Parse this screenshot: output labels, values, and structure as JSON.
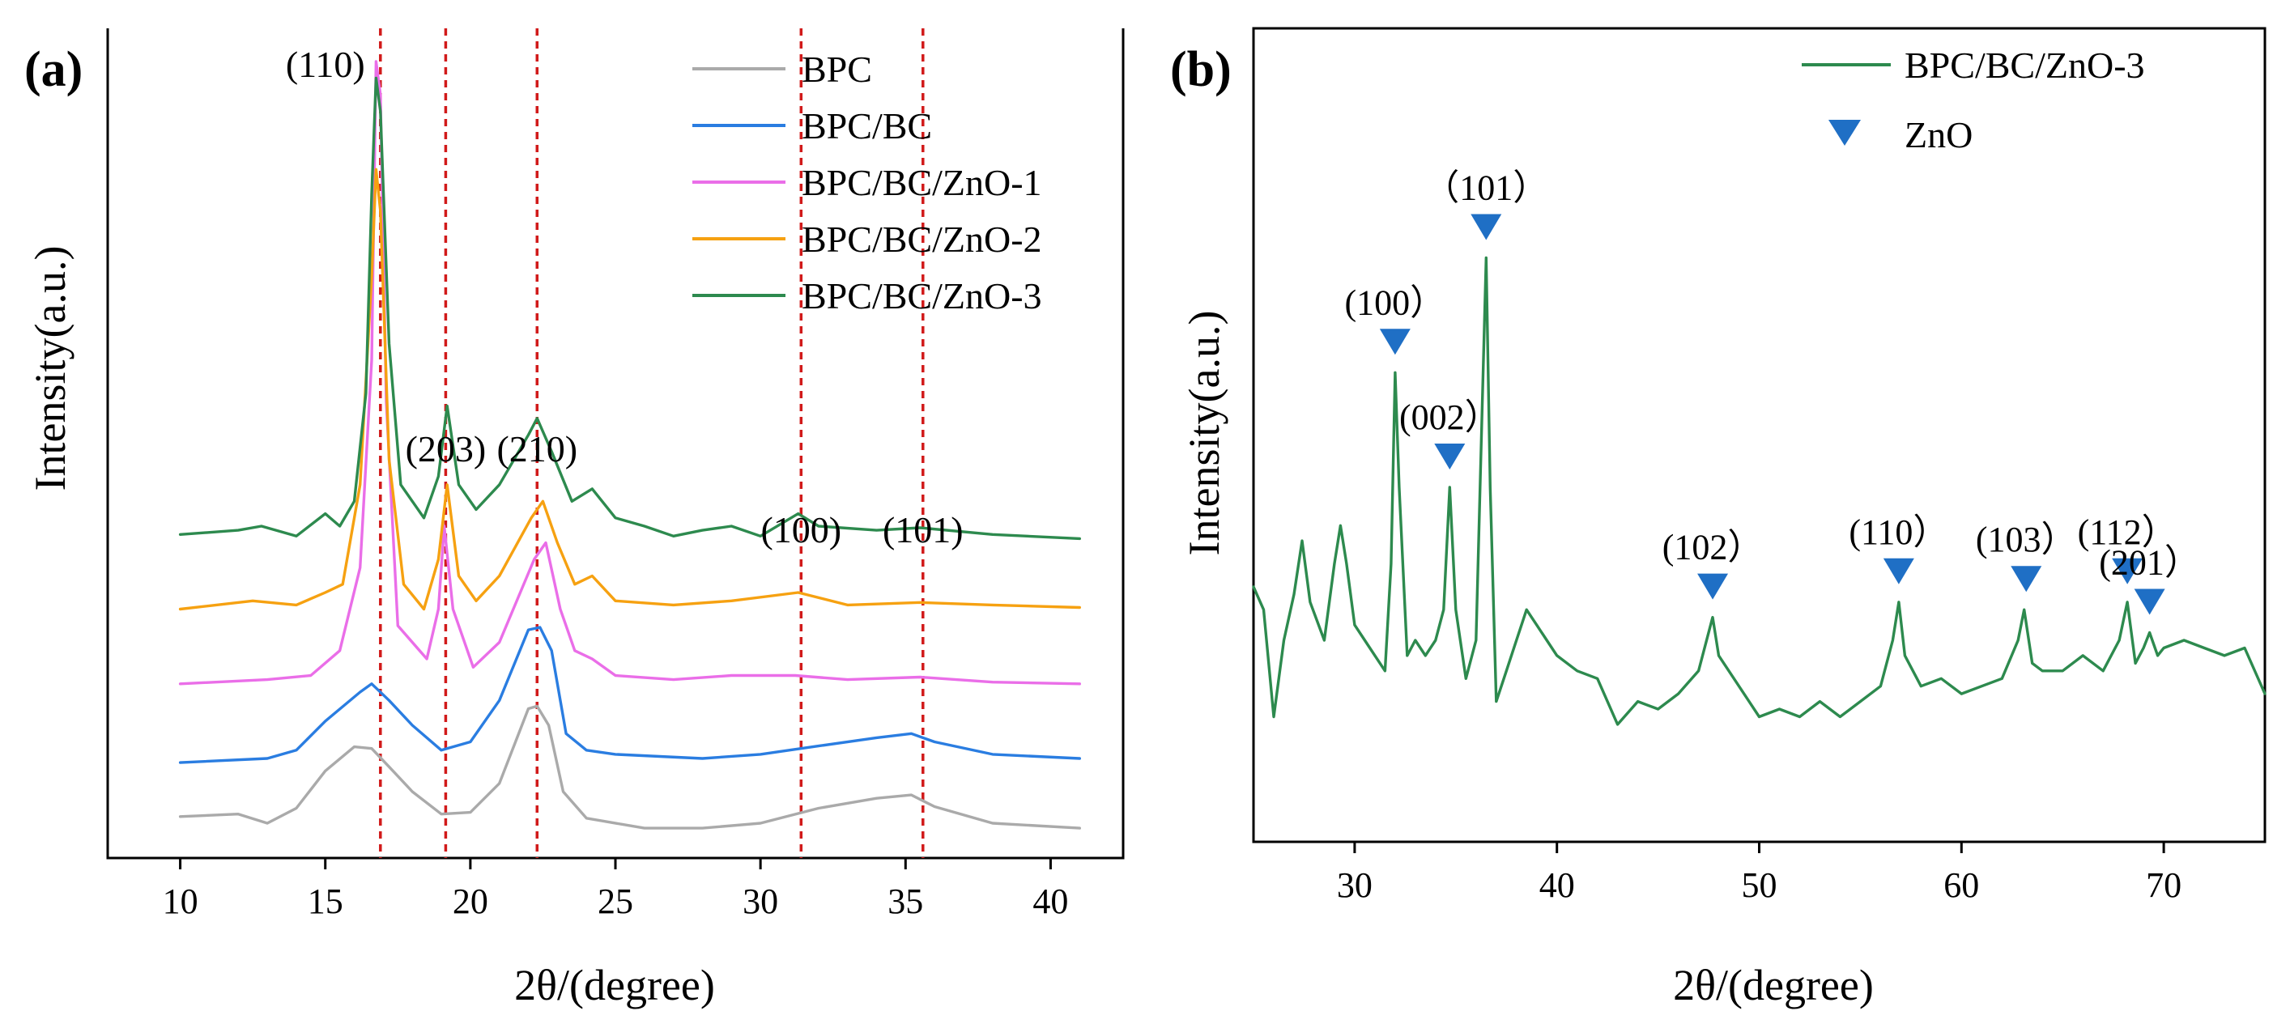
{
  "chart_data": [
    {
      "panel_label": "(a)",
      "type": "line",
      "title": "",
      "xlabel": "2θ/(degree)",
      "ylabel": "Intensity(a.u.)",
      "xlim": [
        7.5,
        42.5
      ],
      "ylim": [
        0,
        100
      ],
      "x_ticks": [
        "10",
        "15",
        "20",
        "25",
        "30",
        "35",
        "40"
      ],
      "x_tick_values": [
        10,
        15,
        20,
        25,
        30,
        35,
        40
      ],
      "grid": false,
      "legend_position": "top-right",
      "series": [
        {
          "name": "BPC",
          "color": "#aaaaaa",
          "points": [
            [
              10,
              5
            ],
            [
              12,
              5.3
            ],
            [
              13,
              4.2
            ],
            [
              14,
              6
            ],
            [
              15,
              10.5
            ],
            [
              16,
              13.4
            ],
            [
              16.6,
              13.2
            ],
            [
              17.2,
              11
            ],
            [
              18,
              8
            ],
            [
              19,
              5.3
            ],
            [
              20,
              5.5
            ],
            [
              21,
              9
            ],
            [
              22,
              18
            ],
            [
              22.3,
              18.3
            ],
            [
              22.7,
              16
            ],
            [
              23.2,
              8
            ],
            [
              24,
              4.8
            ],
            [
              26,
              3.6
            ],
            [
              28,
              3.6
            ],
            [
              30,
              4.2
            ],
            [
              32,
              6
            ],
            [
              34,
              7.2
            ],
            [
              35.2,
              7.6
            ],
            [
              36,
              6.2
            ],
            [
              38,
              4.2
            ],
            [
              41,
              3.6
            ]
          ]
        },
        {
          "name": "BPC/BC",
          "color": "#2a7de1",
          "points": [
            [
              10,
              11.5
            ],
            [
              13,
              12
            ],
            [
              14,
              13
            ],
            [
              15,
              16.5
            ],
            [
              16.2,
              20
            ],
            [
              16.6,
              21
            ],
            [
              17.2,
              19
            ],
            [
              18,
              16
            ],
            [
              19,
              13
            ],
            [
              20,
              14
            ],
            [
              21,
              19
            ],
            [
              22,
              27.5
            ],
            [
              22.4,
              27.8
            ],
            [
              22.8,
              25
            ],
            [
              23.3,
              15
            ],
            [
              24,
              13
            ],
            [
              25,
              12.5
            ],
            [
              28,
              12
            ],
            [
              30,
              12.5
            ],
            [
              32,
              13.5
            ],
            [
              34,
              14.5
            ],
            [
              35.2,
              15
            ],
            [
              36,
              14
            ],
            [
              38,
              12.5
            ],
            [
              41,
              12
            ]
          ]
        },
        {
          "name": "BPC/BC/ZnO-1",
          "color": "#ea6ee8",
          "points": [
            [
              10,
              21
            ],
            [
              13,
              21.5
            ],
            [
              14.5,
              22
            ],
            [
              15.5,
              25
            ],
            [
              16.2,
              35
            ],
            [
              16.6,
              60
            ],
            [
              16.75,
              96
            ],
            [
              16.9,
              92
            ],
            [
              17.1,
              55
            ],
            [
              17.5,
              28
            ],
            [
              18.5,
              24
            ],
            [
              18.9,
              30
            ],
            [
              19.1,
              40
            ],
            [
              19.4,
              30
            ],
            [
              20.1,
              23
            ],
            [
              21,
              26
            ],
            [
              22.2,
              36
            ],
            [
              22.6,
              38
            ],
            [
              23.1,
              30
            ],
            [
              23.6,
              25
            ],
            [
              24.2,
              24
            ],
            [
              25,
              22
            ],
            [
              27,
              21.5
            ],
            [
              29,
              22
            ],
            [
              31.2,
              22
            ],
            [
              33,
              21.5
            ],
            [
              35.5,
              21.8
            ],
            [
              38,
              21.2
            ],
            [
              41,
              21
            ]
          ]
        },
        {
          "name": "BPC/BC/ZnO-2",
          "color": "#f6a111",
          "points": [
            [
              10,
              30
            ],
            [
              12.5,
              31
            ],
            [
              14,
              30.5
            ],
            [
              15,
              32
            ],
            [
              15.6,
              33
            ],
            [
              16.2,
              45
            ],
            [
              16.6,
              70
            ],
            [
              16.75,
              83
            ],
            [
              16.9,
              78
            ],
            [
              17.2,
              48
            ],
            [
              17.7,
              33
            ],
            [
              18.4,
              30
            ],
            [
              18.9,
              36
            ],
            [
              19.2,
              45
            ],
            [
              19.6,
              34
            ],
            [
              20.2,
              31
            ],
            [
              21,
              34
            ],
            [
              22.1,
              41
            ],
            [
              22.5,
              43
            ],
            [
              23,
              38
            ],
            [
              23.6,
              33
            ],
            [
              24.2,
              34
            ],
            [
              25,
              31
            ],
            [
              27,
              30.5
            ],
            [
              29,
              31
            ],
            [
              31.3,
              32
            ],
            [
              33,
              30.5
            ],
            [
              35.5,
              30.8
            ],
            [
              38,
              30.5
            ],
            [
              41,
              30.2
            ]
          ]
        },
        {
          "name": "BPC/BC/ZnO-3",
          "color": "#2d8a4e",
          "points": [
            [
              10,
              39
            ],
            [
              12,
              39.5
            ],
            [
              12.8,
              40
            ],
            [
              14,
              38.8
            ],
            [
              15,
              41.5
            ],
            [
              15.5,
              40
            ],
            [
              16,
              43
            ],
            [
              16.4,
              56
            ],
            [
              16.6,
              80
            ],
            [
              16.75,
              94
            ],
            [
              16.9,
              90
            ],
            [
              17.2,
              62
            ],
            [
              17.6,
              45
            ],
            [
              18.4,
              41
            ],
            [
              18.9,
              46
            ],
            [
              19.2,
              54.5
            ],
            [
              19.6,
              45
            ],
            [
              20.2,
              42
            ],
            [
              21,
              45
            ],
            [
              22,
              51
            ],
            [
              22.3,
              53
            ],
            [
              22.8,
              49
            ],
            [
              23.5,
              43
            ],
            [
              24.2,
              44.5
            ],
            [
              25,
              41
            ],
            [
              26,
              40
            ],
            [
              27,
              38.8
            ],
            [
              28,
              39.5
            ],
            [
              29,
              40
            ],
            [
              30,
              38.8
            ],
            [
              31.3,
              41.5
            ],
            [
              32,
              40
            ],
            [
              34,
              39.5
            ],
            [
              35.5,
              39.8
            ],
            [
              38,
              39
            ],
            [
              41,
              38.5
            ]
          ]
        }
      ],
      "annotations": [
        {
          "text": "(110)",
          "x": 16.9
        },
        {
          "text": "(203)",
          "x": 19.15
        },
        {
          "text": "(210)",
          "x": 22.3
        },
        {
          "text": "(100)",
          "x": 31.4
        },
        {
          "text": "(101)",
          "x": 35.6
        }
      ]
    },
    {
      "panel_label": "(b)",
      "type": "line",
      "title": "",
      "xlabel": "2θ/(degree)",
      "ylabel": "Intensity(a.u.)",
      "xlim": [
        25,
        75
      ],
      "ylim": [
        0,
        100
      ],
      "x_ticks": [
        "30",
        "40",
        "50",
        "60",
        "70"
      ],
      "x_tick_values": [
        30,
        40,
        50,
        60,
        70
      ],
      "grid": false,
      "legend_position": "top-right",
      "series": [
        {
          "name": "BPC/BC/ZnO-3",
          "color": "#2d8a4e",
          "points": [
            [
              25,
              27
            ],
            [
              25.5,
              24
            ],
            [
              26,
              10
            ],
            [
              26.5,
              20
            ],
            [
              27,
              26
            ],
            [
              27.4,
              33
            ],
            [
              27.8,
              25
            ],
            [
              28.5,
              20
            ],
            [
              29,
              30
            ],
            [
              29.3,
              35
            ],
            [
              29.6,
              30
            ],
            [
              30,
              22
            ],
            [
              30.5,
              20
            ],
            [
              31,
              18
            ],
            [
              31.5,
              16
            ],
            [
              31.8,
              30
            ],
            [
              32,
              55
            ],
            [
              32.2,
              40
            ],
            [
              32.6,
              18
            ],
            [
              33,
              20
            ],
            [
              33.5,
              18
            ],
            [
              34,
              20
            ],
            [
              34.4,
              24
            ],
            [
              34.7,
              40
            ],
            [
              35,
              24
            ],
            [
              35.5,
              15
            ],
            [
              36,
              20
            ],
            [
              36.3,
              50
            ],
            [
              36.5,
              70
            ],
            [
              36.7,
              40
            ],
            [
              37,
              12
            ],
            [
              37.5,
              16
            ],
            [
              38,
              20
            ],
            [
              38.5,
              24
            ],
            [
              39,
              22
            ],
            [
              39.5,
              20
            ],
            [
              40,
              18
            ],
            [
              41,
              16
            ],
            [
              42,
              15
            ],
            [
              43,
              9
            ],
            [
              44,
              12
            ],
            [
              45,
              11
            ],
            [
              46,
              13
            ],
            [
              47,
              16
            ],
            [
              47.7,
              23
            ],
            [
              48,
              18
            ],
            [
              49,
              14
            ],
            [
              50,
              10
            ],
            [
              51,
              11
            ],
            [
              52,
              10
            ],
            [
              53,
              12
            ],
            [
              54,
              10
            ],
            [
              55,
              12
            ],
            [
              56,
              14
            ],
            [
              56.6,
              20
            ],
            [
              56.9,
              25
            ],
            [
              57.2,
              18
            ],
            [
              58,
              14
            ],
            [
              59,
              15
            ],
            [
              60,
              13
            ],
            [
              61,
              14
            ],
            [
              62,
              15
            ],
            [
              62.8,
              20
            ],
            [
              63.1,
              24
            ],
            [
              63.5,
              17
            ],
            [
              64,
              16
            ],
            [
              65,
              16
            ],
            [
              66,
              18
            ],
            [
              67,
              16
            ],
            [
              67.8,
              20
            ],
            [
              68.2,
              25
            ],
            [
              68.6,
              17
            ],
            [
              69,
              19
            ],
            [
              69.3,
              21
            ],
            [
              69.7,
              18
            ],
            [
              70,
              19
            ],
            [
              71,
              20
            ],
            [
              72,
              19
            ],
            [
              73,
              18
            ],
            [
              74,
              19
            ],
            [
              75,
              13
            ]
          ]
        }
      ],
      "markers": {
        "name": "ZnO",
        "color": "#1f6fc5",
        "peaks": [
          {
            "label": "(100）",
            "x": 32.0
          },
          {
            "label": "(002）",
            "x": 34.7
          },
          {
            "label": "（101）",
            "x": 36.5
          },
          {
            "label": "(102）",
            "x": 47.7
          },
          {
            "label": "(110）",
            "x": 56.9
          },
          {
            "label": "(103）",
            "x": 63.2
          },
          {
            "label": "(112）",
            "x": 68.2
          },
          {
            "label": "(201）",
            "x": 69.3
          }
        ]
      }
    }
  ]
}
